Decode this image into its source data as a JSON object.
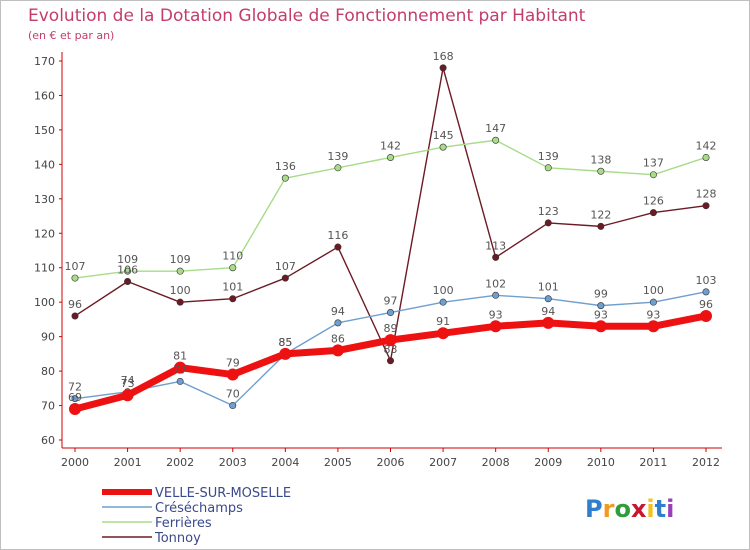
{
  "chart_data": {
    "type": "line",
    "title": "Evolution de la Dotation Globale de Fonctionnement par Habitant",
    "subtitle": "(en € et par an)",
    "xlabel": "",
    "ylabel": "",
    "x": [
      2000,
      2001,
      2002,
      2003,
      2004,
      2005,
      2006,
      2007,
      2008,
      2009,
      2010,
      2011,
      2012
    ],
    "ylim": [
      60,
      170
    ],
    "yticks": [
      60,
      70,
      80,
      90,
      100,
      110,
      120,
      130,
      140,
      150,
      160,
      170
    ],
    "grid": false,
    "legend": "bottom-left",
    "series": [
      {
        "name": "Tonnoy",
        "color": "#6e1a24",
        "values": [
          96,
          106,
          100,
          101,
          107,
          116,
          83,
          168,
          113,
          123,
          122,
          126,
          128
        ]
      },
      {
        "name": "Ferrières",
        "color": "#a8dc88",
        "values": [
          107,
          109,
          109,
          110,
          136,
          139,
          142,
          145,
          147,
          139,
          138,
          137,
          142
        ]
      },
      {
        "name": "Créséchamps",
        "color": "#6f9fd0",
        "values": [
          72,
          74,
          77,
          70,
          85,
          94,
          97,
          100,
          102,
          101,
          99,
          100,
          103
        ]
      },
      {
        "name": "VELLE-SUR-MOSELLE",
        "color": "#ee1111",
        "values": [
          69,
          73,
          81,
          79,
          85,
          86,
          89,
          91,
          93,
          94,
          93,
          93,
          96
        ]
      }
    ]
  },
  "legend_order": [
    "VELLE-SUR-MOSELLE",
    "Créséchamps",
    "Ferrières",
    "Tonnoy"
  ],
  "logo": {
    "text": "Proxiti"
  }
}
